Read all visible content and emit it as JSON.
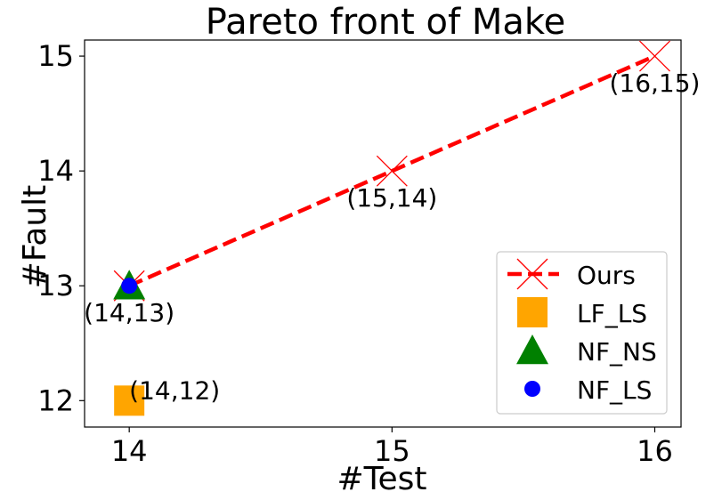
{
  "chart_data": {
    "type": "scatter",
    "title": "Pareto front of Make",
    "xlabel": "#Test",
    "ylabel": "#Fault",
    "xlim": [
      13.83,
      16.1
    ],
    "ylim": [
      11.77,
      15.14
    ],
    "x_ticks": [
      14,
      15,
      16
    ],
    "y_ticks": [
      12,
      13,
      14,
      15
    ],
    "x_tick_labels": [
      "14",
      "15",
      "16"
    ],
    "y_tick_labels": [
      "12",
      "13",
      "14",
      "15"
    ],
    "grid": false,
    "legend_position": "lower-right",
    "series": [
      {
        "name": "Ours",
        "marker": "x",
        "line": "dashed",
        "color": "#ff0000",
        "points": [
          {
            "x": 14,
            "y": 13
          },
          {
            "x": 15,
            "y": 14
          },
          {
            "x": 16,
            "y": 15
          }
        ]
      },
      {
        "name": "LF_LS",
        "marker": "square",
        "color": "#ffa500",
        "points": [
          {
            "x": 14,
            "y": 12
          }
        ]
      },
      {
        "name": "NF_NS",
        "marker": "triangle",
        "color": "#008000",
        "points": [
          {
            "x": 14,
            "y": 13
          }
        ]
      },
      {
        "name": "NF_LS",
        "marker": "circle",
        "color": "#0000ff",
        "points": [
          {
            "x": 14,
            "y": 13
          }
        ]
      }
    ],
    "annotations": [
      {
        "text": "(16,15)",
        "x": 16,
        "y": 15,
        "placement": "below"
      },
      {
        "text": "(15,14)",
        "x": 15,
        "y": 14,
        "placement": "below"
      },
      {
        "text": "(14,13)",
        "x": 14,
        "y": 13,
        "placement": "below"
      },
      {
        "text": "(14,12)",
        "x": 14,
        "y": 12,
        "placement": "right"
      }
    ]
  }
}
